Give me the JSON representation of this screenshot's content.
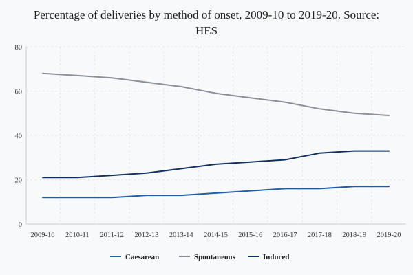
{
  "chart_data": {
    "type": "line",
    "title": "Percentage of deliveries by method of onset, 2009-10 to 2019-20. Source: HES",
    "categories": [
      "2009-10",
      "2010-11",
      "2011-12",
      "2012-13",
      "2013-14",
      "2014-15",
      "2015-16",
      "2016-17",
      "2017-18",
      "2018-19",
      "2019-20"
    ],
    "ylim": [
      0,
      80
    ],
    "yticks": [
      0,
      20,
      40,
      60,
      80
    ],
    "grid": true,
    "legend_position": "bottom",
    "series": [
      {
        "name": "Caesarean",
        "color": "#1f5fa8",
        "values": [
          12,
          12,
          12,
          13,
          13,
          14,
          15,
          16,
          16,
          17,
          17
        ]
      },
      {
        "name": "Spontaneous",
        "color": "#8a9099",
        "values": [
          68,
          67,
          66,
          64,
          62,
          59,
          57,
          55,
          52,
          50,
          49
        ]
      },
      {
        "name": "Induced",
        "color": "#14305c",
        "values": [
          21,
          21,
          22,
          23,
          25,
          27,
          28,
          29,
          32,
          33,
          33
        ]
      }
    ]
  }
}
